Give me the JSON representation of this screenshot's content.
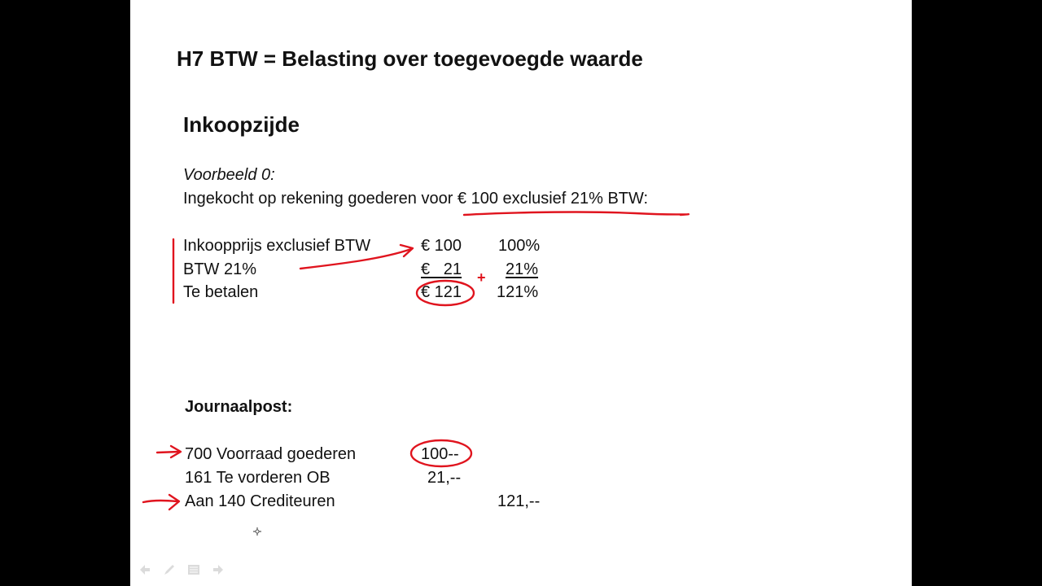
{
  "slide": {
    "title": "H7 BTW = Belasting over toegevoegde waarde",
    "section_heading": "Inkoopzijde",
    "example_label": "Voorbeeld 0:",
    "example_description": "Ingekocht op rekening goederen voor € 100 exclusief 21% BTW:",
    "calculation": {
      "rows": [
        {
          "label": "Inkoopprijs exclusief BTW",
          "amount": "€ 100",
          "percent": "100%"
        },
        {
          "label": "BTW 21%",
          "amount": "€   21",
          "percent": "21%"
        },
        {
          "label": "Te betalen",
          "amount": "€ 121",
          "percent": "121%"
        }
      ]
    },
    "journal": {
      "heading": "Journaalpost:",
      "entries": [
        {
          "account": "700 Voorraad goederen",
          "debit": "100--",
          "credit": ""
        },
        {
          "account": "161 Te vorderen OB",
          "debit": "21,--",
          "credit": ""
        },
        {
          "account": "Aan 140 Crediteuren",
          "debit": "",
          "credit": "121,--"
        }
      ]
    }
  },
  "annotation_color": "#e0141e",
  "annotation_plus": "+",
  "toolbar": {
    "icons": [
      "arrow-left-icon",
      "pen-icon",
      "slides-menu-icon",
      "arrow-right-icon"
    ]
  }
}
